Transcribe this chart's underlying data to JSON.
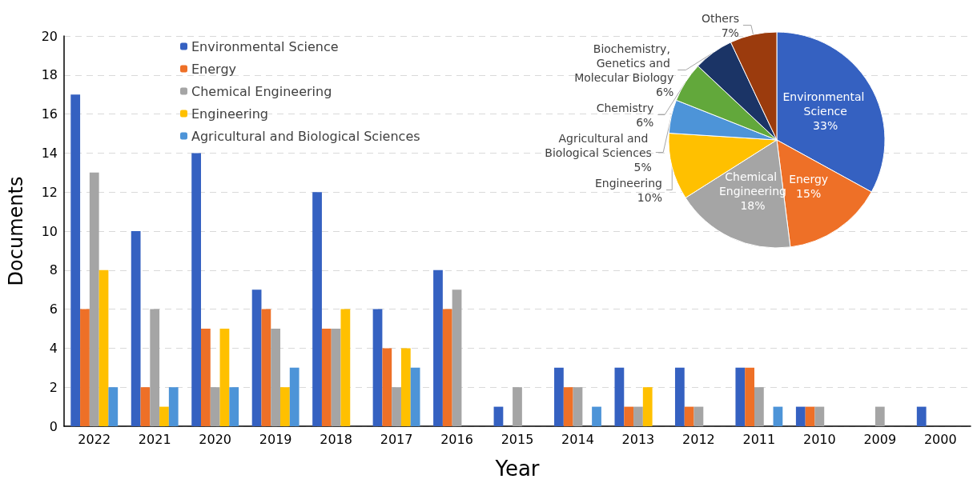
{
  "chart_data": [
    {
      "type": "bar",
      "xlabel": "Year",
      "ylabel": "Documents",
      "categories": [
        "2022",
        "2021",
        "2020",
        "2019",
        "2018",
        "2017",
        "2016",
        "2015",
        "2014",
        "2013",
        "2012",
        "2011",
        "2010",
        "2009",
        "2000"
      ],
      "series": [
        {
          "name": "Environmental Science",
          "color": "#3561c1",
          "values": [
            17,
            10,
            14,
            7,
            12,
            6,
            8,
            1,
            3,
            3,
            3,
            3,
            1,
            0,
            1
          ]
        },
        {
          "name": "Energy",
          "color": "#ee7027",
          "values": [
            6,
            2,
            5,
            6,
            5,
            4,
            6,
            0,
            2,
            1,
            1,
            3,
            1,
            0,
            0
          ]
        },
        {
          "name": "Chemical Engineering",
          "color": "#a5a5a5",
          "values": [
            13,
            6,
            2,
            5,
            5,
            2,
            7,
            2,
            2,
            1,
            1,
            2,
            1,
            1,
            0
          ]
        },
        {
          "name": "Engineering",
          "color": "#ffc000",
          "values": [
            8,
            1,
            5,
            2,
            6,
            4,
            0,
            0,
            0,
            2,
            0,
            0,
            0,
            0,
            0
          ]
        },
        {
          "name": "Agricultural and Biological Sciences",
          "color": "#4d94d8",
          "values": [
            2,
            2,
            2,
            3,
            0,
            3,
            0,
            0,
            1,
            0,
            0,
            1,
            0,
            0,
            0
          ]
        }
      ],
      "ylim": [
        0,
        20
      ],
      "yticks": [
        0,
        2,
        4,
        6,
        8,
        10,
        12,
        14,
        16,
        18,
        20
      ],
      "grid": "y",
      "legend": "top"
    },
    {
      "type": "pie",
      "categories": [
        "Environmental Science",
        "Energy",
        "Chemical Engineering",
        "Engineering",
        "Agricultural and Biological Sciences",
        "Chemistry",
        "Biochemistry, Genetics and Molecular Biology",
        "Others"
      ],
      "values": [
        33,
        15,
        18,
        10,
        5,
        6,
        6,
        7
      ],
      "value_labels": [
        "33%",
        "15%",
        "18%",
        "10%",
        "5%",
        "6%",
        "6%",
        "7%"
      ],
      "colors": [
        "#3561c1",
        "#ee7027",
        "#a5a5a5",
        "#ffc000",
        "#4d94d8",
        "#62a83b",
        "#1b3466",
        "#9b3b0d"
      ]
    }
  ]
}
